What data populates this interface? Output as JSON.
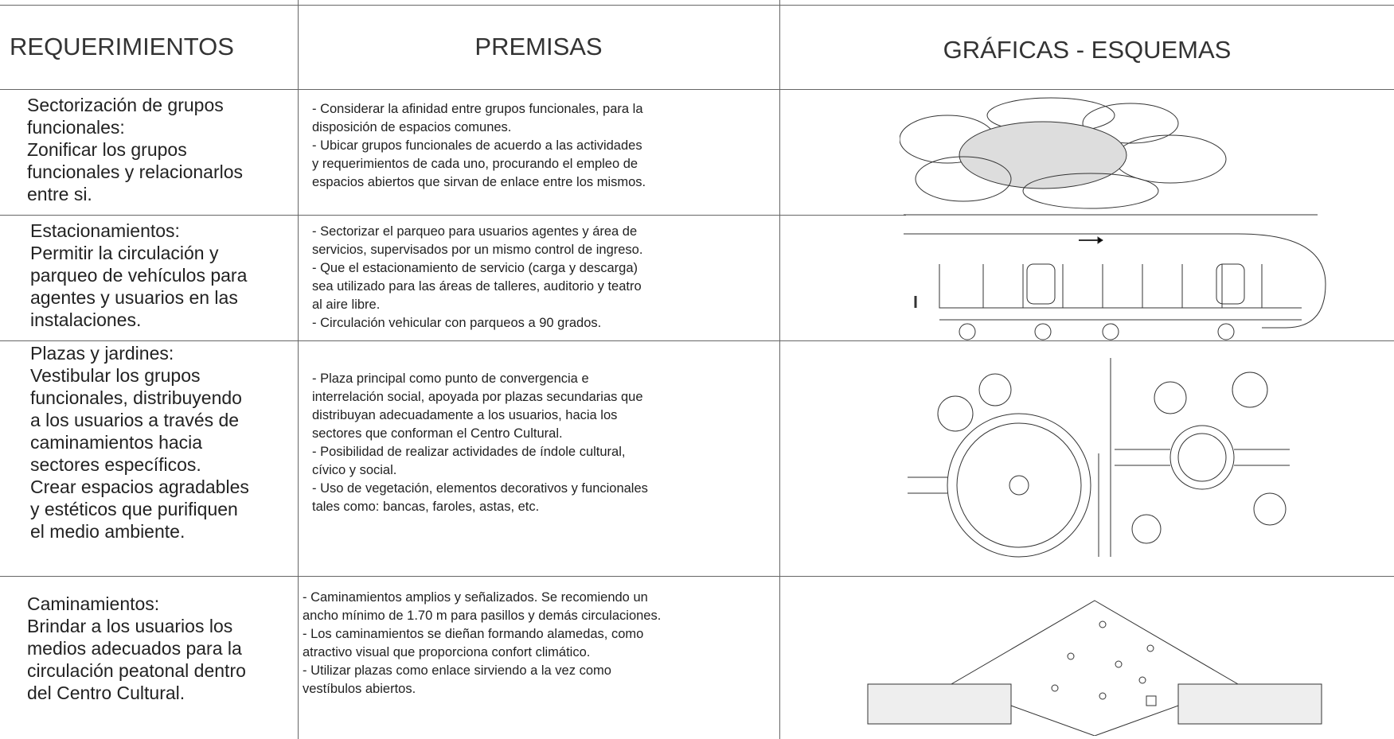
{
  "table": {
    "header": [
      "REQUERIMIENTOS",
      "PREMISAS",
      "GRÁFICAS - ESQUEMAS"
    ],
    "rows": [
      {
        "requerimiento": [
          "Sectorización de grupos",
          "funcionales:",
          "Zonificar los grupos",
          "funcionales y relacionarlos",
          "entre si."
        ],
        "premisas": [
          "- Considerar la afinidad entre grupos funcionales, para la",
          "disposición de espacios comunes.",
          "- Ubicar grupos funcionales de acuerdo a las actividades",
          "y requerimientos de cada uno, procurando el empleo de",
          "espacios abiertos que sirvan de enlace entre los mismos."
        ]
      },
      {
        "requerimiento": [
          "Estacionamientos:",
          "Permitir la circulación y",
          "parqueo de vehículos para",
          "agentes y usuarios en las",
          "instalaciones."
        ],
        "premisas": [
          "- Sectorizar el parqueo para usuarios agentes y área de",
          "servicios, supervisados por un mismo control de ingreso.",
          "- Que el estacionamiento de servicio (carga y descarga)",
          "sea utilizado para las áreas de talleres, auditorio y teatro",
          "al aire libre.",
          "- Circulación vehicular con parqueos a 90 grados."
        ]
      },
      {
        "requerimiento": [
          "Plazas y jardines:",
          "Vestibular los grupos",
          "funcionales, distribuyendo",
          "a los usuarios a través de",
          "caminamientos hacia",
          "sectores específicos.",
          "Crear espacios agradables",
          "y estéticos que purifiquen",
          "el medio ambiente."
        ],
        "premisas": [
          "- Plaza principal como punto de convergencia e",
          "interrelación social, apoyada por plazas secundarias que",
          "distribuyan adecuadamente a los usuarios, hacia los",
          "sectores que conforman el Centro Cultural.",
          "- Posibilidad de realizar actividades de índole cultural,",
          "cívico y social.",
          "- Uso de vegetación, elementos decorativos y funcionales",
          "tales como: bancas, faroles, astas, etc."
        ]
      },
      {
        "requerimiento": [
          "Caminamientos:",
          "Brindar a los usuarios los",
          "medios adecuados para la",
          "circulación peatonal dentro",
          "del Centro Cultural."
        ],
        "premisas": [
          "- Caminamientos amplios y señalizados. Se recomiendo un",
          "ancho mínimo de 1.70 m para pasillos y demás circulaciones.",
          "- Los caminamientos se dieñan formando alamedas, como",
          "atractivo visual que proporciona confort climático.",
          "- Utilizar plazas como enlace sirviendo a la vez como",
          "vestíbulos abiertos."
        ]
      }
    ]
  }
}
